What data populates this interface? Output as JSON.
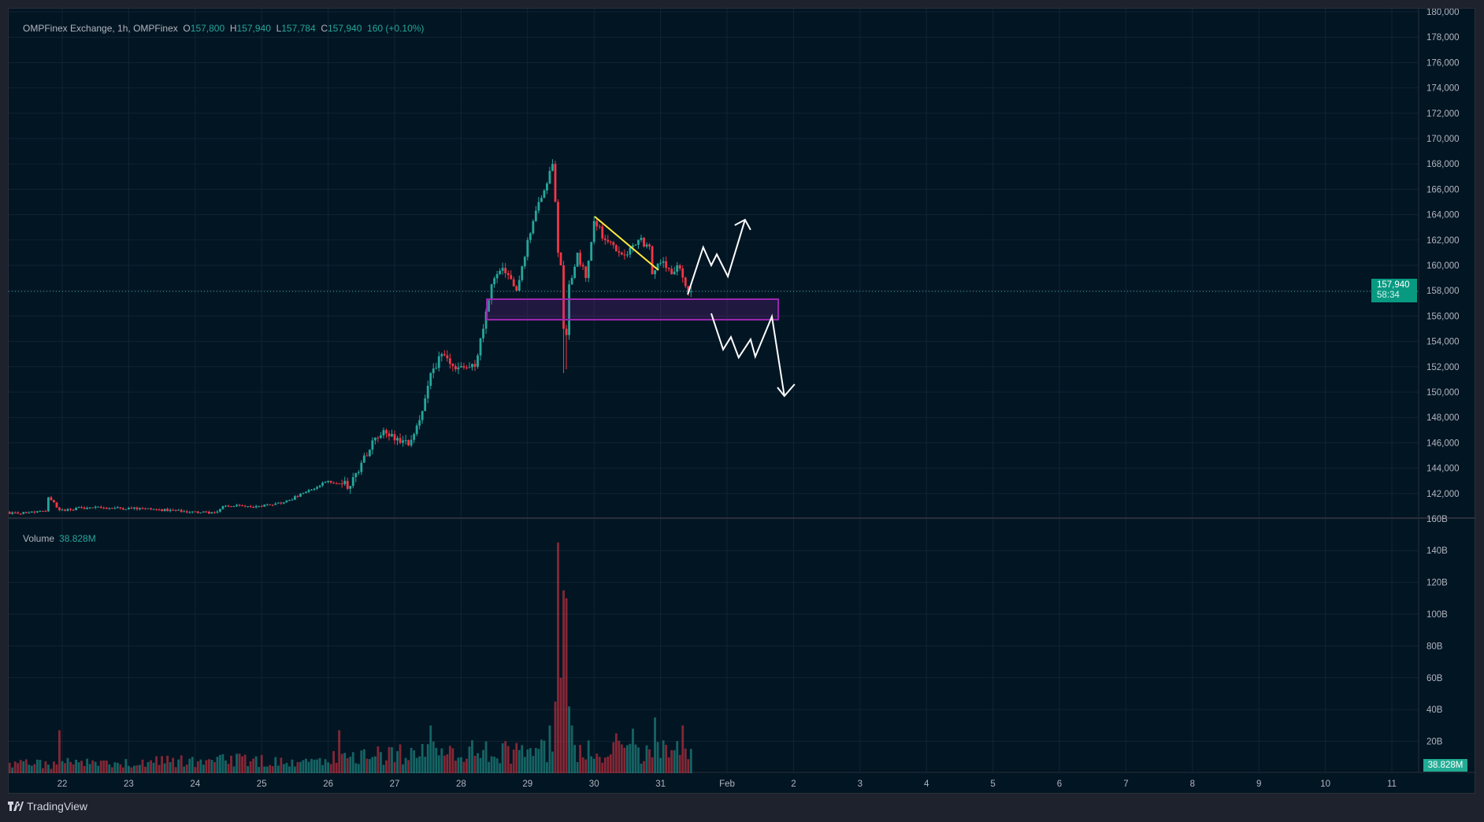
{
  "header": {
    "symbol": "OMPFinex Exchange, 1h, OMPFinex",
    "o_label": "O",
    "o": "157,800",
    "h_label": "H",
    "h": "157,940",
    "l_label": "L",
    "l": "157,784",
    "c_label": "C",
    "c": "157,940",
    "change": "160 (+0.10%)"
  },
  "volume_legend": {
    "label": "Volume",
    "value": "38.828M"
  },
  "last_price": {
    "price": "157,940",
    "countdown": "58:34",
    "value": 157940
  },
  "volume_badge": "38.828M",
  "footer": {
    "logo_text": "TradingView"
  },
  "colors": {
    "up": "#26a69a",
    "down": "#f23645",
    "zone": "#9c27b0",
    "trendline": "#ffeb3b",
    "projection": "#ffffff"
  },
  "chart_data": {
    "type": "candlestick",
    "interval": "1h",
    "time_unit": "hours since Jan 22 00:00",
    "price_axis": {
      "range": [
        140000,
        180000
      ],
      "labels": [
        "142,000",
        "144,000",
        "146,000",
        "148,000",
        "150,000",
        "152,000",
        "154,000",
        "156,000",
        "158,000",
        "160,000",
        "162,000",
        "164,000",
        "166,000",
        "168,000",
        "170,000",
        "172,000",
        "174,000",
        "176,000",
        "178,000",
        "180,000"
      ],
      "values": [
        142000,
        144000,
        146000,
        148000,
        150000,
        152000,
        154000,
        156000,
        158000,
        160000,
        162000,
        164000,
        166000,
        168000,
        170000,
        172000,
        174000,
        176000,
        178000,
        180000
      ]
    },
    "volume_axis": {
      "range": [
        0,
        160
      ],
      "unit": "B",
      "labels": [
        "20B",
        "40B",
        "60B",
        "80B",
        "100B",
        "120B",
        "140B",
        "160B"
      ],
      "values": [
        20,
        40,
        60,
        80,
        100,
        120,
        140,
        160
      ]
    },
    "date_axis": {
      "labels": [
        "22",
        "23",
        "24",
        "25",
        "26",
        "27",
        "28",
        "29",
        "30",
        "31",
        "Feb",
        "2",
        "3",
        "4",
        "5",
        "6",
        "7",
        "8",
        "9",
        "10",
        "11"
      ]
    },
    "first_candle_hour": -19,
    "last_candle_hour": 227,
    "close_keypoints": [
      [
        -19,
        140400
      ],
      [
        -12,
        140500
      ],
      [
        -6,
        140600
      ],
      [
        -5,
        141700
      ],
      [
        -3,
        141300
      ],
      [
        -1,
        140700
      ],
      [
        10,
        140900
      ],
      [
        30,
        140800
      ],
      [
        50,
        140500
      ],
      [
        55,
        140500
      ],
      [
        58,
        141000
      ],
      [
        70,
        141000
      ],
      [
        80,
        141300
      ],
      [
        90,
        142300
      ],
      [
        96,
        143000
      ],
      [
        104,
        142600
      ],
      [
        109,
        145000
      ],
      [
        116,
        147000
      ],
      [
        125,
        145800
      ],
      [
        130,
        148500
      ],
      [
        133,
        151500
      ],
      [
        137,
        153000
      ],
      [
        142,
        151800
      ],
      [
        149,
        152000
      ],
      [
        152,
        155000
      ],
      [
        155,
        158500
      ],
      [
        159,
        159800
      ],
      [
        164,
        158000
      ],
      [
        168,
        162000
      ],
      [
        172,
        165000
      ],
      [
        177,
        168000
      ],
      [
        178,
        165000
      ],
      [
        179,
        161000
      ],
      [
        180,
        160000
      ],
      [
        181,
        155000
      ],
      [
        182,
        154500
      ],
      [
        183,
        158500
      ],
      [
        186,
        161000
      ],
      [
        189,
        159000
      ],
      [
        192,
        163500
      ],
      [
        196,
        162000
      ],
      [
        203,
        160800
      ],
      [
        208,
        162000
      ],
      [
        212,
        161500
      ],
      [
        213,
        159300
      ],
      [
        216,
        160200
      ],
      [
        220,
        159300
      ],
      [
        222,
        160000
      ],
      [
        226,
        157900
      ],
      [
        227,
        157940
      ]
    ],
    "special_lows": [
      [
        181,
        151500
      ],
      [
        182,
        151800
      ]
    ],
    "volume_spikes_B": [
      [
        -1,
        27
      ],
      [
        100,
        27
      ],
      [
        133,
        30
      ],
      [
        176,
        30
      ],
      [
        178,
        45
      ],
      [
        179,
        145
      ],
      [
        180,
        60
      ],
      [
        181,
        115
      ],
      [
        182,
        110
      ],
      [
        183,
        42
      ],
      [
        184,
        30
      ],
      [
        200,
        25
      ],
      [
        206,
        28
      ],
      [
        214,
        35
      ],
      [
        224,
        30
      ]
    ],
    "volume_baseline_B": [
      [
        -19,
        6
      ],
      [
        90,
        9
      ],
      [
        130,
        14
      ],
      [
        170,
        15
      ],
      [
        227,
        14
      ]
    ],
    "drawings": {
      "zone": {
        "from_hour": 153.3,
        "to_hour": 258.5,
        "top": 157330,
        "bottom": 155710
      },
      "trendline": {
        "points": [
          [
            192.2,
            163850
          ],
          [
            215.2,
            159630
          ]
        ]
      },
      "up_projection": {
        "points": [
          [
            225.8,
            157700
          ],
          [
            231.4,
            161430
          ],
          [
            234.3,
            160000
          ],
          [
            236.3,
            160870
          ],
          [
            240.3,
            159130
          ],
          [
            246.5,
            163600
          ]
        ],
        "head": [
          [
            242.8,
            163170
          ],
          [
            246.5,
            163600
          ],
          [
            248.5,
            162800
          ]
        ]
      },
      "down_projection": {
        "points": [
          [
            234.3,
            156210
          ],
          [
            238.6,
            153360
          ],
          [
            241.4,
            154350
          ],
          [
            244.2,
            152730
          ],
          [
            248.5,
            154160
          ],
          [
            250.2,
            152800
          ],
          [
            256.2,
            155960
          ],
          [
            260.7,
            149690
          ]
        ],
        "head": [
          [
            258.2,
            150370
          ],
          [
            260.7,
            149690
          ],
          [
            264.4,
            150620
          ]
        ]
      }
    }
  }
}
